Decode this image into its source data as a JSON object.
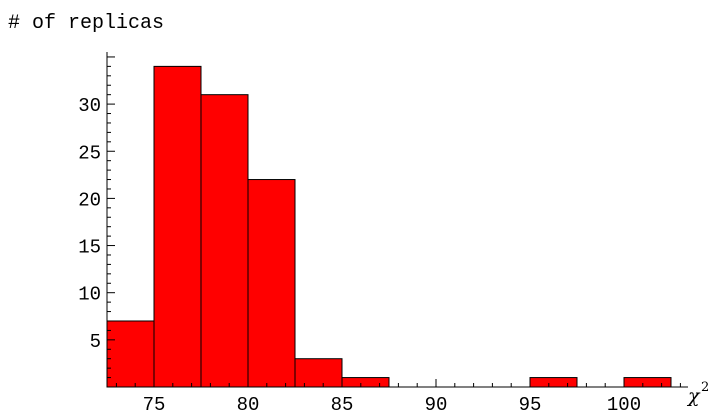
{
  "chart_data": {
    "type": "bar",
    "ylabel": "# of replicas",
    "xlabel": "χ",
    "xlabel_superscript": "2",
    "bar_color": "#ff0000",
    "bins": [
      {
        "x0": 72.5,
        "x1": 75.0,
        "count": 7
      },
      {
        "x0": 75.0,
        "x1": 77.5,
        "count": 34
      },
      {
        "x0": 77.5,
        "x1": 80.0,
        "count": 31
      },
      {
        "x0": 80.0,
        "x1": 82.5,
        "count": 22
      },
      {
        "x0": 82.5,
        "x1": 85.0,
        "count": 3
      },
      {
        "x0": 85.0,
        "x1": 87.5,
        "count": 1
      },
      {
        "x0": 95.0,
        "x1": 97.5,
        "count": 1
      },
      {
        "x0": 100.0,
        "x1": 102.5,
        "count": 1
      }
    ],
    "xticks": [
      75,
      80,
      85,
      90,
      95,
      100
    ],
    "yticks": [
      5,
      10,
      15,
      20,
      25,
      30
    ],
    "xlim": [
      72.5,
      103.0
    ],
    "ylim": [
      0,
      35.5
    ],
    "grid": false
  }
}
